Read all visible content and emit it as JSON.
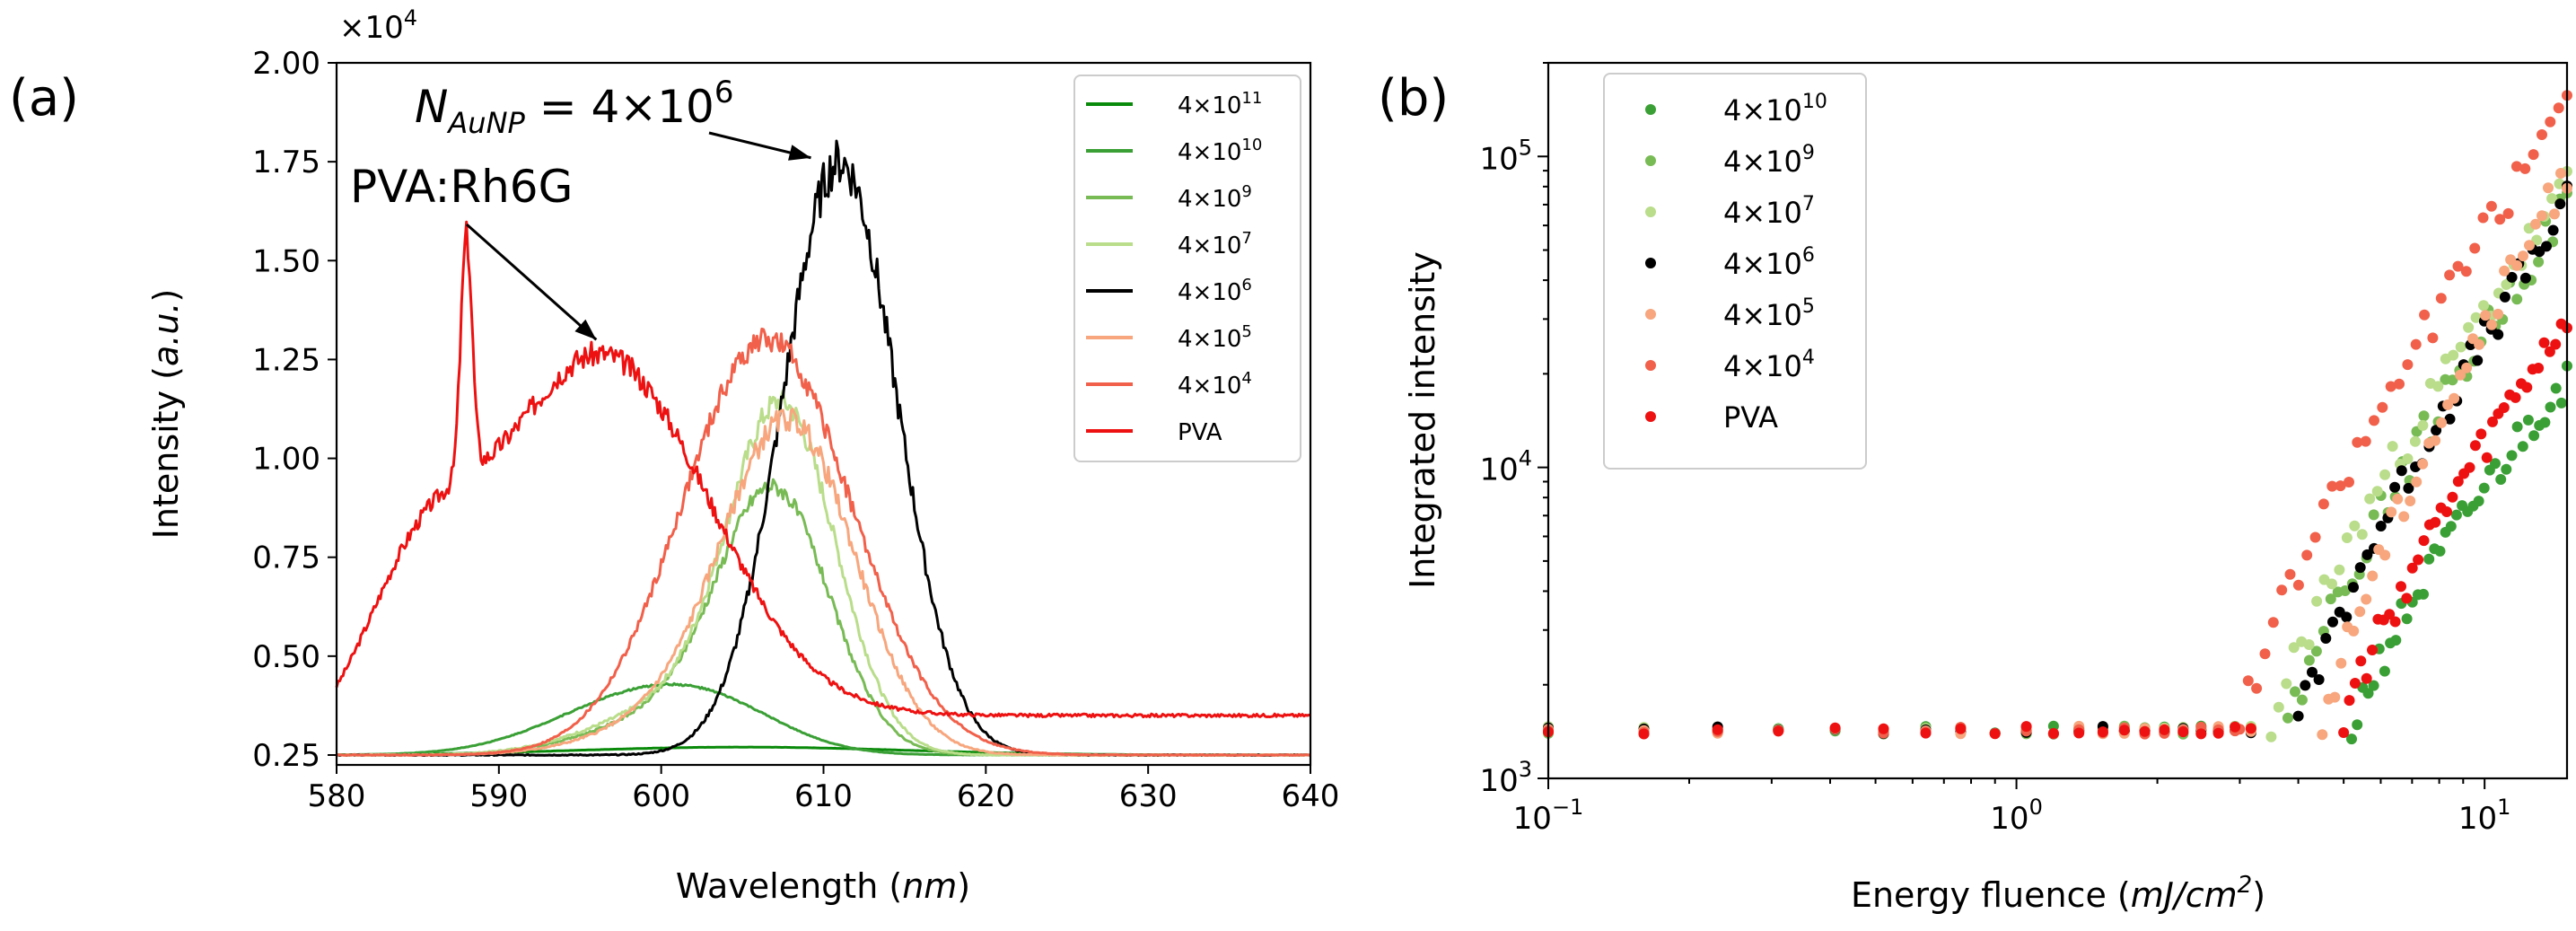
{
  "figure": {
    "panel_a_label": "(a)",
    "panel_b_label": "(b)"
  },
  "chart_data": [
    {
      "panel": "(a)",
      "type": "line",
      "xlabel": "Wavelength (nm)",
      "xlabel_text": "Wavelength (",
      "xlabel_unit": "nm",
      "xlabel_close": ")",
      "ylabel": "Intensity (a.u.)",
      "ylabel_text": "Intensity (",
      "ylabel_unit": "a.u.",
      "ylabel_close": ")",
      "y_scale_factor": "×10",
      "y_scale_exp": "4",
      "xlim": [
        580,
        640
      ],
      "ylim": [
        0.225,
        2.0
      ],
      "xticks": [
        580,
        590,
        600,
        610,
        620,
        630,
        640
      ],
      "yticks": [
        "0.25",
        "0.50",
        "0.75",
        "1.00",
        "1.25",
        "1.50",
        "1.75",
        "2.00"
      ],
      "annotations": [
        {
          "text": "PVA:Rh6G",
          "arrow_to": [
            596,
            1.3
          ]
        },
        {
          "text": "N_AuNP = 4×10^6",
          "main": "N",
          "sub": "AuNP",
          "rest": " = 4×10",
          "sup": "6",
          "arrow_to": [
            610,
            1.76
          ]
        }
      ],
      "legend_position": "top-right",
      "series": [
        {
          "name": "4×10^11",
          "base": "4×10",
          "exp": "11",
          "color": "#0a8a0a",
          "peaks": [
            [
              605,
              0.02,
              10
            ]
          ],
          "noise": 0.004,
          "seed": 11
        },
        {
          "name": "4×10^10",
          "base": "4×10",
          "exp": "10",
          "color": "#3aa035",
          "peaks": [
            [
              599,
              0.15,
              5.5
            ],
            [
              604,
              0.05,
              4
            ]
          ],
          "noise": 0.012,
          "seed": 10
        },
        {
          "name": "4×10^9",
          "base": "4×10",
          "exp": "9",
          "color": "#78bb55",
          "peaks": [
            [
              607,
              0.63,
              3.4
            ],
            [
              601,
              0.1,
              5
            ]
          ],
          "noise": 0.03,
          "seed": 9
        },
        {
          "name": "4×10^7",
          "base": "4×10",
          "exp": "7",
          "color": "#b9dd8a",
          "peaks": [
            [
              607.5,
              0.84,
              3.3
            ],
            [
              601,
              0.12,
              5
            ]
          ],
          "noise": 0.035,
          "seed": 7
        },
        {
          "name": "4×10^6",
          "base": "4×10",
          "exp": "6",
          "color": "#000000",
          "peaks": [
            [
              611,
              1.5,
              3.5
            ]
          ],
          "noise": 0.04,
          "seed": 6
        },
        {
          "name": "4×10^5",
          "base": "4×10",
          "exp": "5",
          "color": "#f7a67d",
          "peaks": [
            [
              608,
              0.8,
              4.0
            ],
            [
              602,
              0.1,
              5
            ]
          ],
          "noise": 0.035,
          "seed": 5
        },
        {
          "name": "4×10^4",
          "base": "4×10",
          "exp": "4",
          "color": "#f1604a",
          "peaks": [
            [
              606.5,
              1.05,
              5.2
            ]
          ],
          "noise": 0.03,
          "seed": 4
        },
        {
          "name": "PVA",
          "base": "PVA",
          "exp": "",
          "color": "#ee1111",
          "peaks": [
            [
              596,
              1.0,
              6.5
            ],
            [
              585,
              0.35,
              3.5
            ],
            [
              588,
              0.6,
              0.35
            ]
          ],
          "noise": 0.03,
          "seed": 3,
          "tail": 0.1
        }
      ]
    },
    {
      "panel": "(b)",
      "type": "scatter",
      "xscale": "log",
      "yscale": "log",
      "xlabel": "Energy fluence (mJ/cm^2)",
      "xlabel_text": "Energy fluence (",
      "xlabel_unit": "mJ/cm",
      "xlabel_sup": "2",
      "xlabel_close": ")",
      "ylabel": "Integrated intensity",
      "xlim": [
        0.1,
        15
      ],
      "ylim": [
        1000,
        200000
      ],
      "xticks": [
        {
          "value": 0.1,
          "base": "10",
          "exp": "−1"
        },
        {
          "value": 1,
          "base": "10",
          "exp": "0"
        },
        {
          "value": 10,
          "base": "10",
          "exp": "1"
        }
      ],
      "yticks": [
        {
          "value": 1000,
          "base": "10",
          "exp": "3"
        },
        {
          "value": 10000,
          "base": "10",
          "exp": "4"
        },
        {
          "value": 100000,
          "base": "10",
          "exp": "5"
        }
      ],
      "legend_position": "top-left",
      "baseline": 1430,
      "series": [
        {
          "name": "4×10^10",
          "base": "4×10",
          "exp": "10",
          "color": "#3aa035",
          "threshold": 5.2,
          "max": 20000,
          "seed": 21
        },
        {
          "name": "4×10^9",
          "base": "4×10",
          "exp": "9",
          "color": "#78bb55",
          "threshold": 3.8,
          "max": 70000,
          "seed": 22
        },
        {
          "name": "4×10^7",
          "base": "4×10",
          "exp": "7",
          "color": "#b9dd8a",
          "threshold": 3.5,
          "max": 80000,
          "seed": 23
        },
        {
          "name": "4×10^6",
          "base": "4×10",
          "exp": "6",
          "color": "#000000",
          "threshold": 4.0,
          "max": 70000,
          "seed": 24
        },
        {
          "name": "4×10^5",
          "base": "4×10",
          "exp": "5",
          "color": "#f7a67d",
          "threshold": 4.5,
          "max": 90000,
          "seed": 25
        },
        {
          "name": "4×10^4",
          "base": "4×10",
          "exp": "4",
          "color": "#f1604a",
          "threshold": 3.0,
          "max": 150000,
          "seed": 26
        },
        {
          "name": "PVA",
          "base": "PVA",
          "exp": "",
          "color": "#ee1111",
          "threshold": 5.0,
          "max": 30000,
          "seed": 27
        }
      ]
    }
  ]
}
